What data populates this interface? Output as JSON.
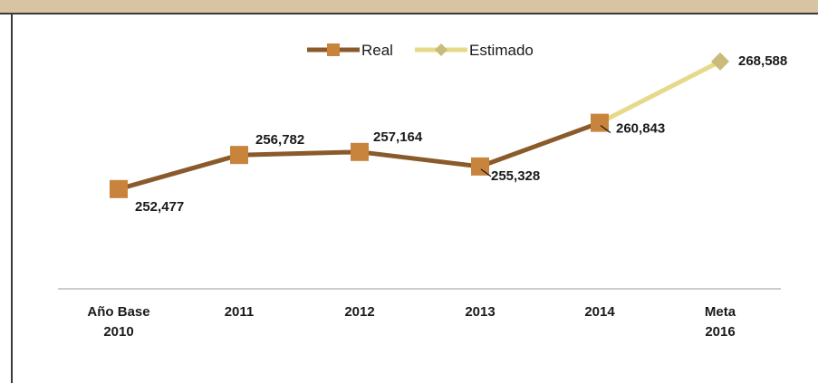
{
  "chart_data": {
    "type": "line",
    "categories": [
      [
        "Año Base",
        "2010"
      ],
      [
        "2011"
      ],
      [
        "2012"
      ],
      [
        "2013"
      ],
      [
        "2014"
      ],
      [
        "Meta",
        "2016"
      ]
    ],
    "series": [
      {
        "name": "Real",
        "color": "#8a5a2b",
        "marker_color": "#c8843c",
        "marker": "square",
        "values": [
          252477,
          256782,
          257164,
          255328,
          260843,
          null
        ],
        "labels": [
          "252,477",
          "256,782",
          "257,164",
          "255,328",
          "260,843",
          ""
        ]
      },
      {
        "name": "Estimado",
        "color": "#e6d98a",
        "marker_color": "#c9bb7a",
        "marker": "diamond",
        "values": [
          null,
          null,
          null,
          null,
          260843,
          268588
        ],
        "labels": [
          "",
          "",
          "",
          "",
          "",
          "268,588"
        ]
      }
    ],
    "ylim": [
      240000,
      272000
    ],
    "legend": "top-center",
    "grid": false
  }
}
